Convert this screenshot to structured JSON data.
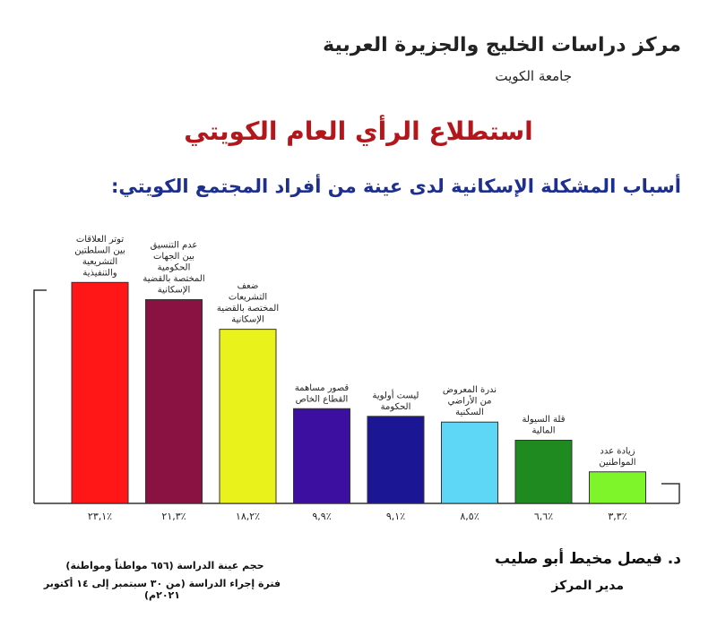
{
  "header": {
    "org_name": "مركز دراسات الخليج والجزيرة العربية",
    "university": "جامعة الكويت"
  },
  "title": "استطلاع الرأي العام الكويتي",
  "subtitle": "أسباب المشكلة الإسكانية لدى عينة من أفراد المجتمع الكويتي:",
  "footer": {
    "signatory_name": "د. فيصل مخيط أبو صليب",
    "signatory_role": "مدير المركز",
    "sample_size": "حجم عينة الدراسة (٦٥٦ مواطناً ومواطنة)",
    "study_period": "فترة إجراء الدراسة (من ٣٠ سبتمبر إلى ١٤ أكتوبر ٢٠٢١م)"
  },
  "chart_data": {
    "type": "bar",
    "categories": [
      "توتر العلاقات بين السلطتين التشريعية والتنفيذية",
      "عدم التنسيق بين الجهات الحكومية المختصة بالقضية الإسكانية",
      "ضعف التشريعات المختصة بالقضية الإسكانية",
      "قصور مساهمة القطاع الخاص",
      "ليست أولوية الحكومة",
      "ندرة المعروض من الأراضي السكنية",
      "قلة السيولة المالية",
      "زيادة عدد المواطنين"
    ],
    "category_lines": [
      [
        "توتر العلاقات",
        "بين السلطتين",
        "التشريعية",
        "والتنفيذية"
      ],
      [
        "عدم التنسيق",
        "بين الجهات",
        "الحكومية",
        "المختصة بالقضية",
        "الإسكانية"
      ],
      [
        "ضعف",
        "التشريعات",
        "المختصة بالقضية",
        "الإسكانية"
      ],
      [
        "قصور مساهمة",
        "القطاع الخاص"
      ],
      [
        "ليست أولوية",
        "الحكومة"
      ],
      [
        "ندرة المعروض",
        "من الأراضي",
        "السكنية"
      ],
      [
        "قلة السيولة",
        "المالية"
      ],
      [
        "زيادة عدد",
        "المواطنين"
      ]
    ],
    "values": [
      23.1,
      21.3,
      18.2,
      9.9,
      9.1,
      8.5,
      6.6,
      3.3
    ],
    "value_labels": [
      "٢٣,١٪",
      "٢١,٣٪",
      "١٨,٢٪",
      "٩,٩٪",
      "٩,١٪",
      "٨,٥٪",
      "٦,٦٪",
      "٣,٣٪"
    ],
    "colors": [
      "#ff1616",
      "#8a1242",
      "#eaf21c",
      "#3d0fa0",
      "#1b1694",
      "#5ed6f5",
      "#1f8a1f",
      "#7ef52a"
    ],
    "ylim": [
      0,
      25
    ],
    "xlabel": "",
    "ylabel": "",
    "grid": false
  }
}
